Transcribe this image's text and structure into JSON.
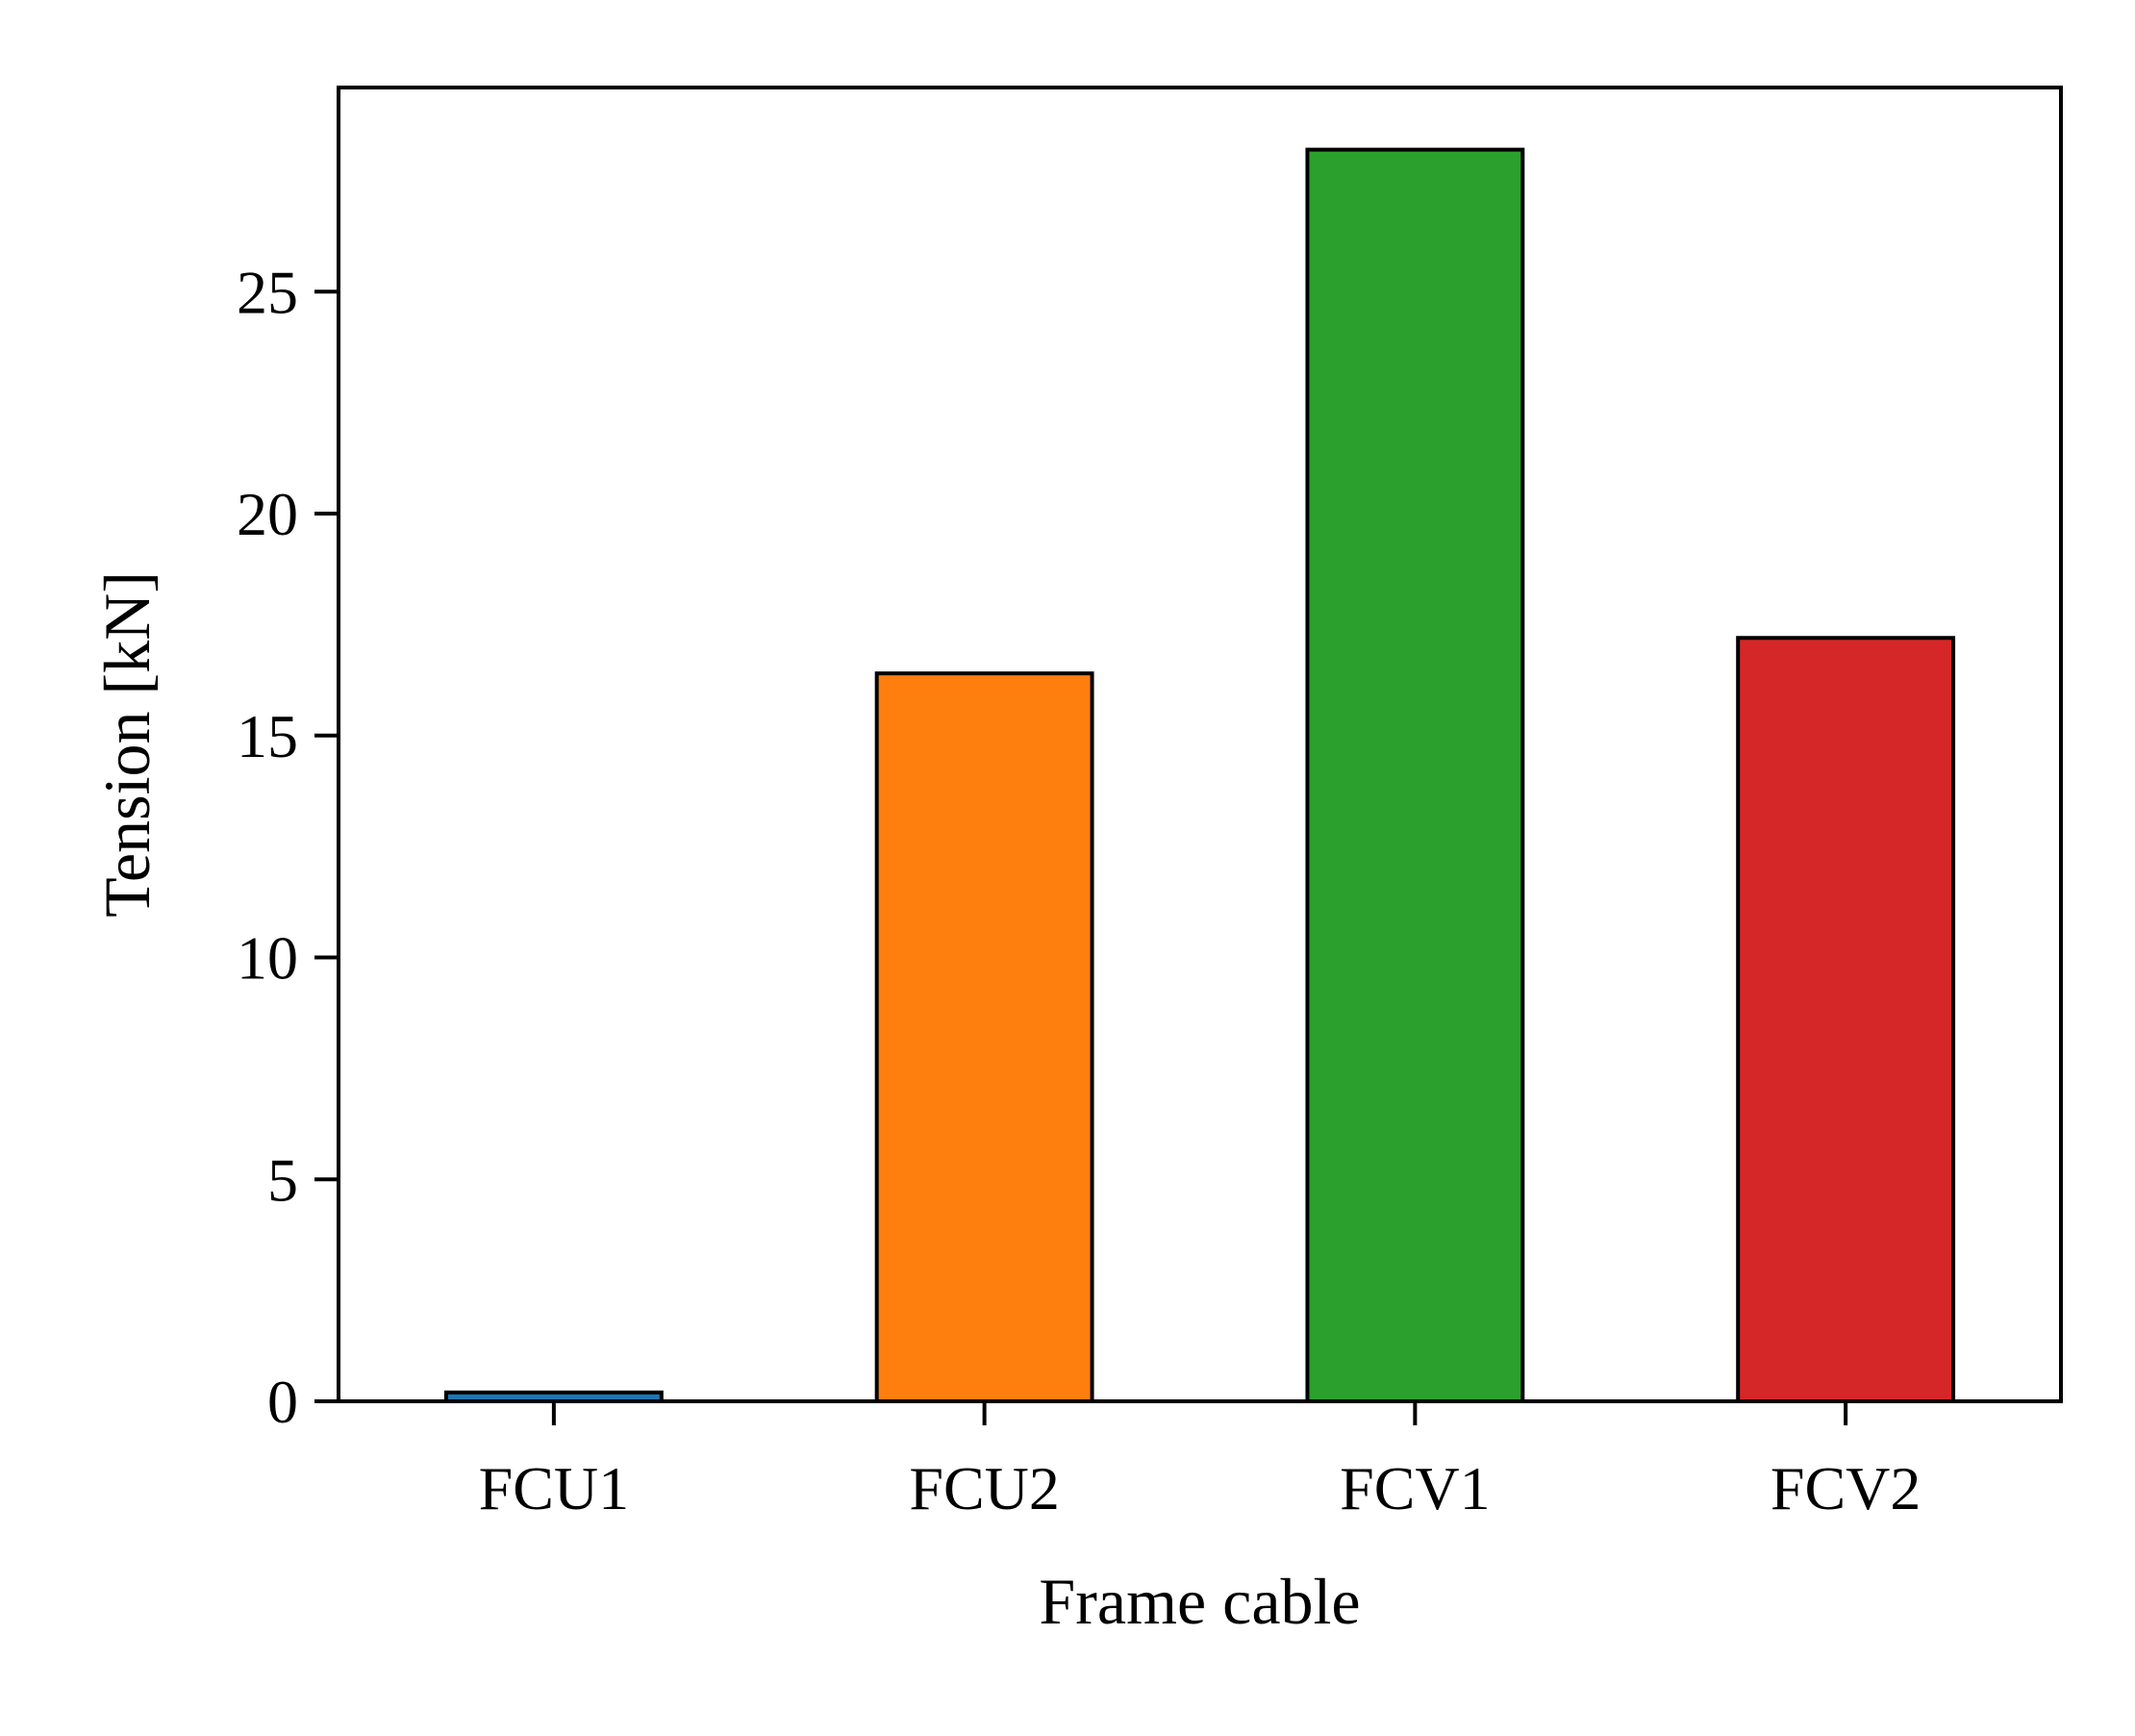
{
  "chart_data": {
    "type": "bar",
    "title": "",
    "xlabel": "Frame cable",
    "ylabel": "Tension [kN]",
    "categories": [
      "FCU1",
      "FCU2",
      "FCV1",
      "FCV2"
    ],
    "values": [
      0.2,
      16.4,
      28.2,
      17.2
    ],
    "colors": [
      "#1f77b4",
      "#ff7f0e",
      "#2ca02c",
      "#d62728"
    ],
    "edge_color": "#000000",
    "ylim": [
      0,
      29.6
    ],
    "yticks": [
      0,
      5,
      10,
      15,
      20,
      25
    ],
    "ytick_labels": [
      "0",
      "5",
      "10",
      "15",
      "20",
      "25"
    ],
    "grid": false,
    "legend": "none"
  }
}
